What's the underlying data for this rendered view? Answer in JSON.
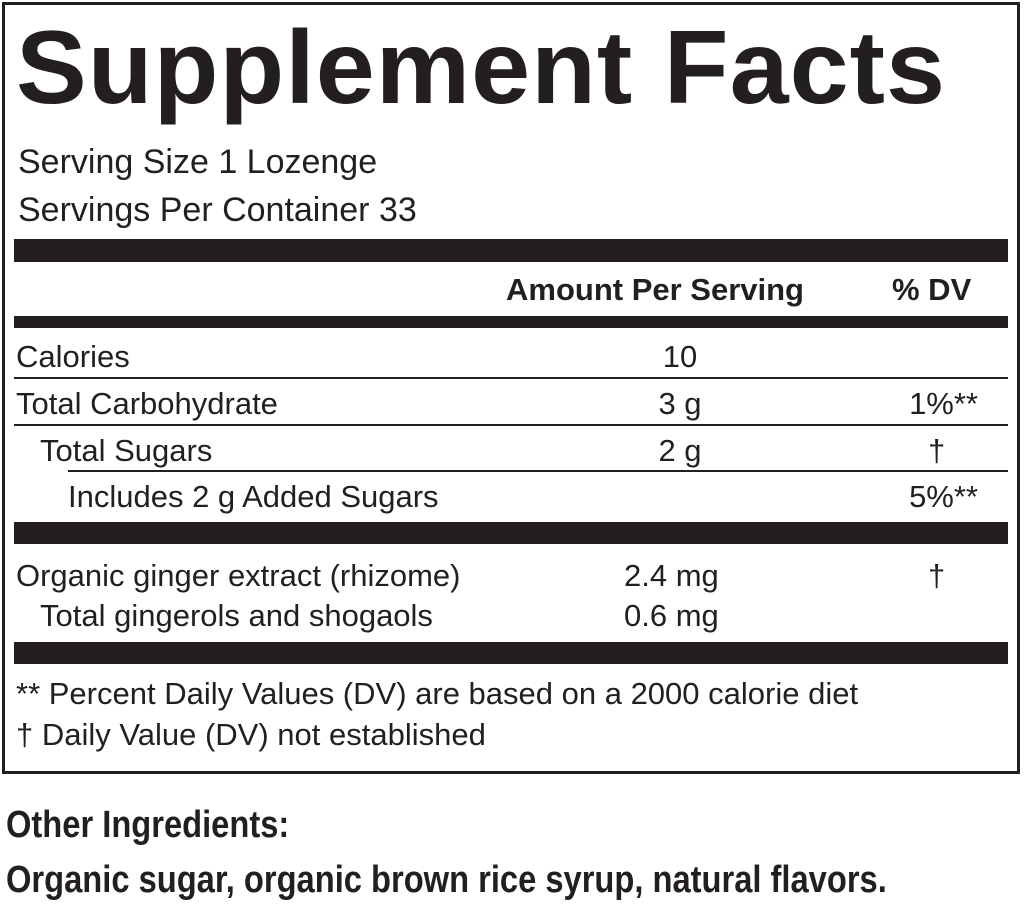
{
  "title": "Supplement Facts",
  "serving_size": "Serving Size 1 Lozenge",
  "servings_per_container": "Servings Per Container 33",
  "header": {
    "amount": "Amount Per Serving",
    "dv": "% DV"
  },
  "rows": [
    {
      "name": "Calories",
      "amount": "10",
      "dv": ""
    },
    {
      "name": "Total Carbohydrate",
      "amount": "3 g",
      "dv": "1%**"
    },
    {
      "name": "Total Sugars",
      "amount": "2 g",
      "dv": "†"
    },
    {
      "name": "Includes 2 g Added Sugars",
      "amount": "",
      "dv": "5%**"
    },
    {
      "name": "Organic ginger extract (rhizome)",
      "amount": "2.4 mg",
      "dv": "†"
    },
    {
      "name": "Total gingerols and shogaols",
      "amount": "0.6 mg",
      "dv": ""
    }
  ],
  "footnotes": [
    "** Percent Daily Values (DV) are based on a 2000 calorie diet",
    "† Daily Value (DV) not established"
  ],
  "other_ingredients": {
    "label": "Other Ingredients:",
    "text": "Organic sugar, organic brown rice syrup, natural flavors."
  }
}
